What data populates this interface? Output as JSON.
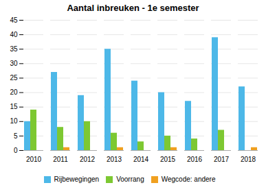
{
  "chart_data": {
    "type": "bar",
    "title": "Aantal inbreuken - 1e semester",
    "categories": [
      "2010",
      "2011",
      "2012",
      "2013",
      "2014",
      "2015",
      "2016",
      "2017",
      "2018"
    ],
    "series": [
      {
        "name": "Rijbewegingen",
        "color": "#4db8e8",
        "values": [
          10,
          27,
          19,
          35,
          24,
          20,
          17,
          39,
          22
        ]
      },
      {
        "name": "Voorrang",
        "color": "#7dc832",
        "values": [
          14,
          8,
          10,
          6,
          3,
          5,
          4,
          7,
          0
        ]
      },
      {
        "name": "Wegcode: andere",
        "color": "#f0a020",
        "values": [
          0,
          1,
          0,
          1,
          0,
          1,
          0,
          0,
          1
        ]
      }
    ],
    "ylim": [
      0,
      45
    ],
    "yticks": [
      0,
      5,
      10,
      15,
      20,
      25,
      30,
      35,
      40,
      45
    ],
    "grid": true,
    "legend": "bottom"
  }
}
